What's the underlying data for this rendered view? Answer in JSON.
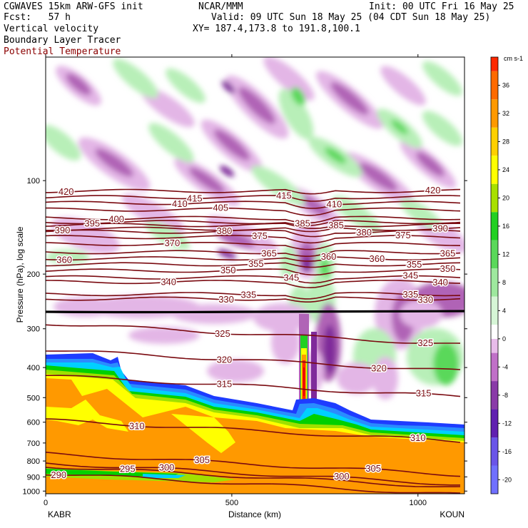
{
  "header": {
    "model": "CGWAVES 15km ARW-GFS init",
    "fcst": "Fcst:   57 h",
    "field1": "Vertical velocity",
    "field2": "Boundary Layer Tracer",
    "field3": "Potential Temperature",
    "org": "NCAR/MMM",
    "init": "Init: 00 UTC Fri 16 May 25",
    "valid": "Valid: 09 UTC Sun 18 May 25 (04 CDT Sun 18 May 25)",
    "xy": "XY= 187.4,173.8 to 191.8,100.1"
  },
  "colors": {
    "theta_contour": "#7a0a10",
    "tropopause": "#000000",
    "bl_tracer_scale": [
      "#1e3cff",
      "#2a8cff",
      "#00d0ff",
      "#00d000",
      "#a0e000",
      "#ffff00",
      "#ff9900"
    ]
  },
  "chart_data": {
    "type": "heatmap",
    "title": "",
    "xlabel": "Distance (km)",
    "ylabel": "Pressure (hPa), log scale",
    "x_ticks": [
      0,
      500,
      1000
    ],
    "xlim": [
      0,
      1125
    ],
    "x_endpoint_labels": {
      "left": "KABR",
      "right": "KOUN"
    },
    "y_scale": "log",
    "y_ticks": [
      100,
      200,
      300,
      400,
      500,
      600,
      700,
      800,
      900,
      1000
    ],
    "ylim": [
      1020,
      40
    ],
    "colorbar": {
      "units": "cm s-1",
      "tick_labels": [
        36,
        32,
        28,
        24,
        20,
        16,
        12,
        8,
        4,
        0,
        -4,
        -8,
        -12,
        -16,
        -20
      ],
      "range": [
        -22,
        40
      ],
      "colors": [
        {
          "v": -22,
          "c": "#7070ff"
        },
        {
          "v": -18,
          "c": "#6a55e8"
        },
        {
          "v": -14,
          "c": "#6020b0"
        },
        {
          "v": -10,
          "c": "#8a3aa8"
        },
        {
          "v": -6,
          "c": "#c070c8"
        },
        {
          "v": -2,
          "c": "#e8bcea"
        },
        {
          "v": 0,
          "c": "#ffffff"
        },
        {
          "v": 2,
          "c": "#d6f5d6"
        },
        {
          "v": 6,
          "c": "#9ee89e"
        },
        {
          "v": 10,
          "c": "#5ad85a"
        },
        {
          "v": 14,
          "c": "#22d022"
        },
        {
          "v": 18,
          "c": "#a8e000"
        },
        {
          "v": 22,
          "c": "#ffff00"
        },
        {
          "v": 26,
          "c": "#ffd000"
        },
        {
          "v": 30,
          "c": "#ff9900"
        },
        {
          "v": 34,
          "c": "#ff6a00"
        },
        {
          "v": 38,
          "c": "#ff2800"
        },
        {
          "v": 40,
          "c": "#e80000"
        }
      ]
    },
    "theta_contours": [
      {
        "label": "420",
        "p": 108,
        "labels_at": [
          55,
          1040
        ]
      },
      {
        "label": "415",
        "p": 113,
        "labels_at": [
          400,
          640
        ]
      },
      {
        "label": "410",
        "p": 118,
        "labels_at": [
          360,
          775
        ]
      },
      {
        "label": "405",
        "p": 124,
        "labels_at": [
          470
        ]
      },
      {
        "label": "400",
        "p": 132,
        "labels_at": [
          190
        ]
      },
      {
        "label": "395",
        "p": 136,
        "labels_at": [
          125
        ]
      },
      {
        "label": "390",
        "p": 143,
        "labels_at": [
          45,
          1060
        ]
      },
      {
        "label": "385",
        "p": 139,
        "labels_at": [
          690,
          780
        ]
      },
      {
        "label": "380",
        "p": 146,
        "labels_at": [
          480,
          855
        ]
      },
      {
        "label": "375",
        "p": 152,
        "labels_at": [
          575,
          960
        ]
      },
      {
        "label": "370",
        "p": 160,
        "labels_at": [
          340
        ]
      },
      {
        "label": "365",
        "p": 170,
        "labels_at": [
          600,
          1080
        ]
      },
      {
        "label": "360",
        "p": 178,
        "labels_at": [
          50,
          760,
          890
        ]
      },
      {
        "label": "355",
        "p": 186,
        "labels_at": [
          565,
          990
        ]
      },
      {
        "label": "350",
        "p": 195,
        "labels_at": [
          490,
          1080
        ]
      },
      {
        "label": "345",
        "p": 205,
        "labels_at": [
          660,
          980
        ]
      },
      {
        "label": "340",
        "p": 212,
        "labels_at": [
          330,
          1060
        ]
      },
      {
        "label": "335",
        "p": 232,
        "labels_at": [
          545,
          980
        ]
      },
      {
        "label": "330",
        "p": 240,
        "labels_at": [
          485,
          1020
        ]
      },
      {
        "label": "325",
        "p": 312,
        "labels_at": [
          475,
          1020
        ]
      },
      {
        "label": "320",
        "p": 380,
        "labels_at": [
          480,
          895
        ]
      },
      {
        "label": "315",
        "p": 460,
        "labels_at": [
          480,
          1015
        ]
      },
      {
        "label": "310",
        "p": 640,
        "labels_at": [
          245,
          1000
        ]
      },
      {
        "label": "305",
        "p": 820,
        "labels_at": [
          420,
          880
        ]
      },
      {
        "label": "300",
        "p": 880,
        "labels_at": [
          325,
          795
        ]
      },
      {
        "label": "295",
        "p": 900,
        "labels_at": [
          220
        ]
      },
      {
        "label": "290",
        "p": 950,
        "labels_at": [
          35
        ]
      }
    ],
    "grid": false,
    "legend": "colorbar right"
  }
}
